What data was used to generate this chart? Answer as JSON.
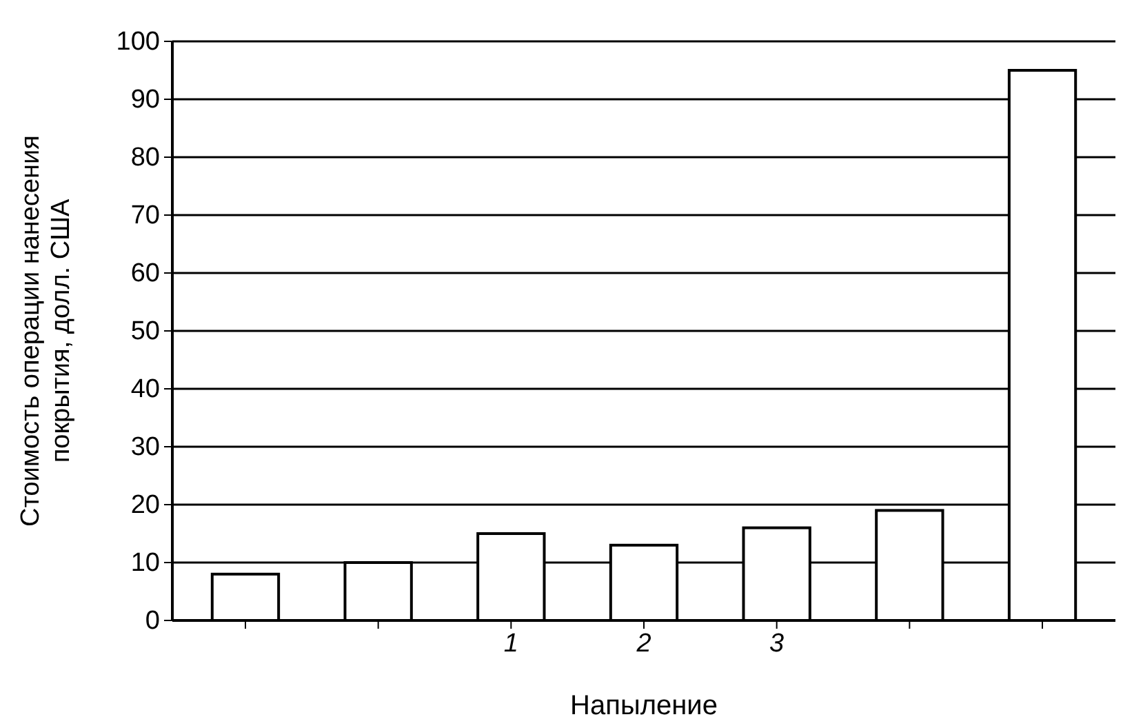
{
  "chart_data": {
    "type": "bar",
    "xlabel": "Напыление",
    "ylabel": "Стоимость операции нанесения покрытия, долл. США",
    "categories": [
      null,
      null,
      "1",
      "2",
      "3",
      null,
      null
    ],
    "values": [
      8,
      10,
      15,
      13,
      16,
      19,
      95
    ],
    "color": "#ffffff",
    "ylim": [
      0,
      100
    ],
    "yticks": [
      0,
      10,
      20,
      30,
      40,
      50,
      60,
      70,
      80,
      90,
      100
    ],
    "grid": "y"
  }
}
